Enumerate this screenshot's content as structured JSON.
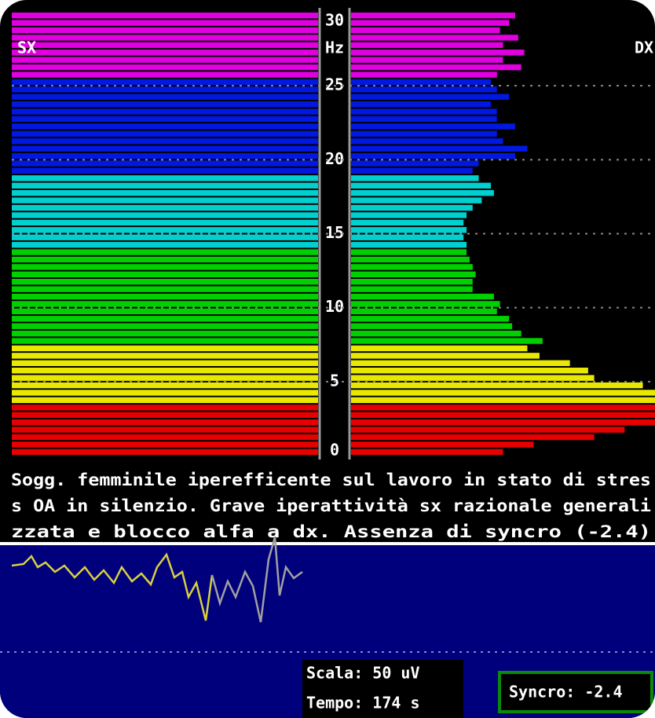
{
  "chart_data": {
    "type": "butterfly",
    "left_label": "SX",
    "right_label": "DX",
    "y_unit": "Hz",
    "ylim": [
      0,
      30
    ],
    "yticks": [
      0,
      5,
      10,
      15,
      20,
      25,
      30
    ],
    "xlim": [
      0,
      100
    ],
    "grid": true,
    "color_bands": [
      {
        "from": 0,
        "to": 3.5,
        "color": "#e80000"
      },
      {
        "from": 3.5,
        "to": 7.5,
        "color": "#e8e800"
      },
      {
        "from": 7.5,
        "to": 14,
        "color": "#00d000"
      },
      {
        "from": 14,
        "to": 19,
        "color": "#00d0d0"
      },
      {
        "from": 19,
        "to": 25.5,
        "color": "#0018e0"
      },
      {
        "from": 25.5,
        "to": 30,
        "color": "#e000e0"
      }
    ],
    "series": [
      {
        "name": "SX",
        "values": [
          100,
          100,
          100,
          100,
          100,
          100,
          100,
          100,
          100,
          100,
          100,
          100,
          100,
          100,
          100,
          100,
          100,
          100,
          100,
          100,
          100,
          100,
          100,
          100,
          100,
          100,
          100,
          100,
          100,
          100,
          100,
          100,
          100,
          100,
          100,
          100,
          100,
          100,
          100,
          100,
          100,
          100,
          100,
          100,
          100,
          100,
          100,
          100,
          100,
          100,
          100,
          100,
          100,
          100,
          100,
          100,
          100,
          100,
          100,
          100
        ]
      },
      {
        "name": "DX",
        "values": [
          50,
          60,
          80,
          90,
          100,
          100,
          100,
          100,
          100,
          96,
          80,
          78,
          72,
          62,
          58,
          63,
          56,
          53,
          52,
          48,
          49,
          47,
          40,
          40,
          41,
          40,
          39,
          38,
          38,
          37,
          38,
          37,
          38,
          40,
          43,
          47,
          46,
          42,
          40,
          42,
          54,
          58,
          50,
          48,
          54,
          48,
          48,
          46,
          52,
          48,
          46,
          48,
          56,
          50,
          57,
          50,
          55,
          49,
          52,
          54
        ]
      }
    ]
  },
  "description": {
    "lines": [
      "Sogg. femminile iperefficente sul lavoro in stato di stres",
      "s OA in silenzio. Grave iperattività sx razionale generali",
      "zzata e blocco alfa a dx. Assenza di syncro (-2.4)"
    ]
  },
  "status": {
    "scale": "Scala: 50 uV",
    "time": "Tempo: 174 s",
    "syncro": "Syncro: -2.4"
  }
}
